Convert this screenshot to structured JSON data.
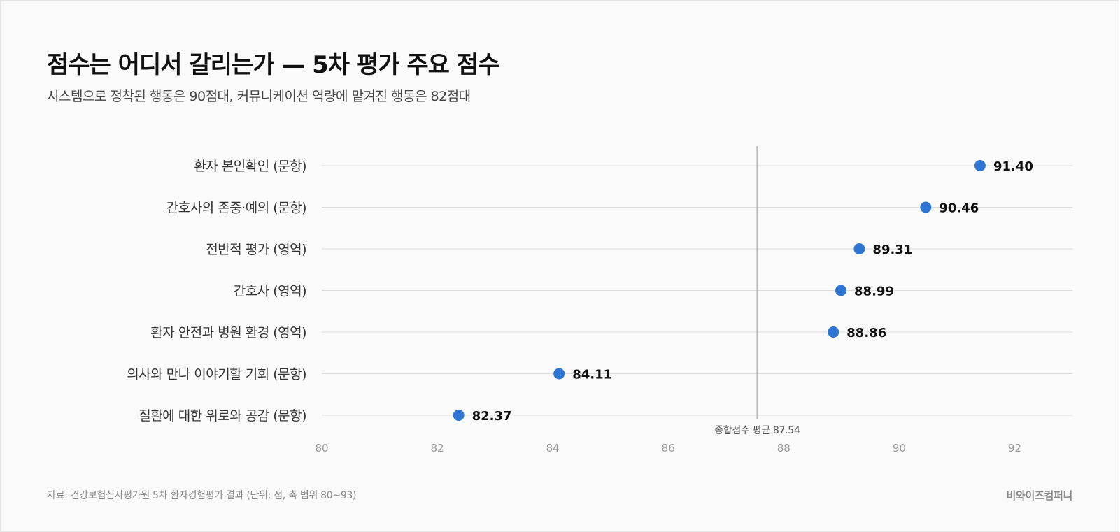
{
  "header": {
    "title": "점수는 어디서 갈리는가 — 5차 평가 주요 점수",
    "subtitle": "시스템으로 정착된 행동은 90점대, 커뮤니케이션 역량에 맡겨진 행동은 82점대"
  },
  "chart_data": {
    "type": "scatter",
    "orientation": "horizontal-dot",
    "categories": [
      "환자 본인확인 (문항)",
      "간호사의 존중·예의 (문항)",
      "전반적 평가 (영역)",
      "간호사 (영역)",
      "환자 안전과 병원 환경 (영역)",
      "의사와 만나 이야기할 기회 (문항)",
      "질환에 대한 위로와 공감 (문항)"
    ],
    "values": [
      91.4,
      90.46,
      89.31,
      88.99,
      88.86,
      84.11,
      82.37
    ],
    "value_labels": [
      "91.40",
      "90.46",
      "89.31",
      "88.99",
      "88.86",
      "84.11",
      "82.37"
    ],
    "xlim": [
      80,
      93
    ],
    "x_ticks": [
      80,
      82,
      84,
      86,
      88,
      90,
      92
    ],
    "x_tick_labels": [
      "80",
      "82",
      "84",
      "86",
      "88",
      "90",
      "92"
    ],
    "reference_line": {
      "value": 87.54,
      "label": "종합점수 평균 87.54"
    },
    "grid": "horizontal",
    "dot_color": "#2e75d3",
    "gridline_color": "#dddddd",
    "reference_line_color": "#bdbdbd",
    "tick_label_color": "#999999",
    "category_label_color": "#333333",
    "value_label_color": "#111111"
  },
  "footer": {
    "source": "자료: 건강보험심사평가원 5차 환자경험평가 결과 (단위: 점, 축 범위 80~93)",
    "brand": "비와이즈컴퍼니"
  }
}
